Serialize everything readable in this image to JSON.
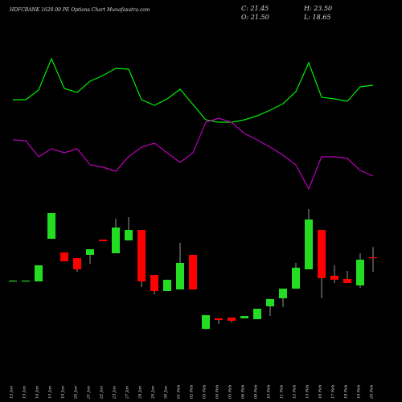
{
  "chart_data": {
    "type": "candlestick",
    "title": "HDFCBANK 1620.00 PE Options Chart Munafasutra.com",
    "info": [
      "C: 21.45",
      "H: 23.50",
      "O: 21.50",
      "L: 18.65"
    ],
    "categories": [
      "12 Jan",
      "13 Jan",
      "14 Jan",
      "15 Jan",
      "19 Jan",
      "20 Jan",
      "21 Jan",
      "22 Jan",
      "23 Jan",
      "27 Jan",
      "28 Jan",
      "29 Jan",
      "30 Jan",
      "01 Feb",
      "02 Feb",
      "03 Feb",
      "04 Feb",
      "05 Feb",
      "06 Feb",
      "09 Feb",
      "10 Feb",
      "11 Feb",
      "12 Feb",
      "13 Feb",
      "16 Feb",
      "17 Feb",
      "18 Feb",
      "19 Feb",
      "20 Feb"
    ],
    "open": [
      16.97,
      16.97,
      16.81,
      25.09,
      22.44,
      21.34,
      21.97,
      24.94,
      22.28,
      24.78,
      26.81,
      18.06,
      14.94,
      15.25,
      21.97,
      7.59,
      9.63,
      9.78,
      9.63,
      9.47,
      11.97,
      13.53,
      15.41,
      19.16,
      26.81,
      17.91,
      17.28,
      16.03,
      21.5
    ],
    "high": [
      17.0,
      17.0,
      19.94,
      30.09,
      22.44,
      21.34,
      23.06,
      24.94,
      29.0,
      29.31,
      26.81,
      18.06,
      17.13,
      24.31,
      21.97,
      10.25,
      9.63,
      9.78,
      10.09,
      11.5,
      13.38,
      15.41,
      20.41,
      30.88,
      26.81,
      19.94,
      18.84,
      22.28,
      23.5
    ],
    "low": [
      16.9,
      16.9,
      16.81,
      25.09,
      20.72,
      18.69,
      20.25,
      24.63,
      22.28,
      24.78,
      15.72,
      14.31,
      14.94,
      15.25,
      15.25,
      7.44,
      8.53,
      8.84,
      9.63,
      9.47,
      10.09,
      11.81,
      15.41,
      19.16,
      13.53,
      16.5,
      16.5,
      15.56,
      18.65
    ],
    "close": [
      16.97,
      16.97,
      19.94,
      30.09,
      20.72,
      19.16,
      23.06,
      24.63,
      27.28,
      26.81,
      16.81,
      14.94,
      17.13,
      20.41,
      15.25,
      10.25,
      9.31,
      9.16,
      10.09,
      11.5,
      13.38,
      15.41,
      19.47,
      28.84,
      17.44,
      17.13,
      16.5,
      21.03,
      21.45
    ],
    "up_color": "#22dd22",
    "down_color": "#ff0000",
    "wick_color": "#bbbbbb",
    "ylim": [
      4,
      33
    ],
    "y2lim": [
      0,
      100
    ],
    "series": [
      {
        "color": "#00ee00",
        "axis": "y2",
        "values": [
          63,
          63,
          69,
          88.5,
          70,
          67.5,
          74.5,
          78,
          82.5,
          82,
          63,
          59.5,
          63.5,
          69.5,
          60,
          50.5,
          49,
          49,
          50.5,
          53,
          56.5,
          60.5,
          68,
          86,
          64.5,
          63.5,
          62,
          71,
          72
        ]
      },
      {
        "color": "#bb00bb",
        "axis": "y2",
        "values": [
          38,
          37.5,
          27.5,
          32.5,
          30,
          32.5,
          22.5,
          21,
          18.5,
          27.5,
          33.5,
          36,
          30,
          24,
          30,
          49,
          51.5,
          49,
          42,
          38,
          33.5,
          28.5,
          22.5,
          7.5,
          27.5,
          27.5,
          26.5,
          19,
          15.5
        ]
      }
    ]
  }
}
